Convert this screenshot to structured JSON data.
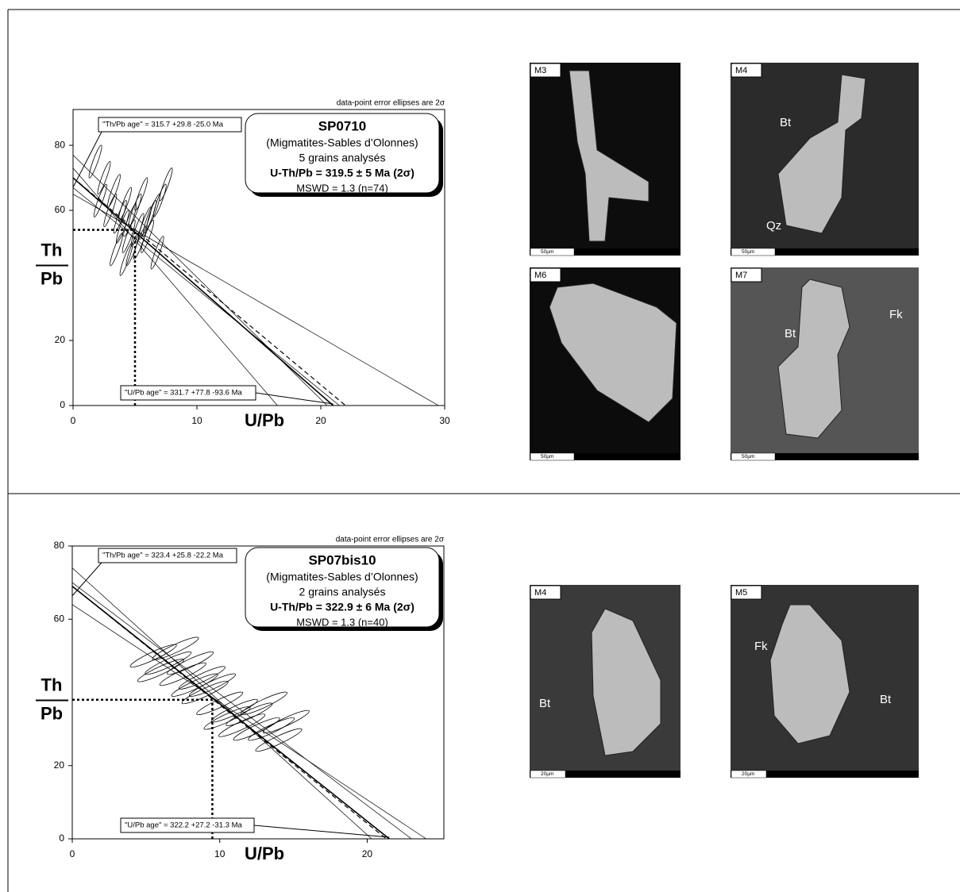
{
  "chart_data": [
    {
      "type": "ellipse",
      "title": "SP0710",
      "info": [
        "(Migmatites-Sables d’Olonnes)",
        "5 grains analysés",
        "U-Th/Pb = 319.5 ± 5 Ma (2σ)",
        "MSWD = 1.3 (n=74)"
      ],
      "note": "data-point error ellipses are 2σ",
      "th_pb_age": "\"Th/Pb age\" =  315.7 +29.8 -25.0 Ma",
      "u_pb_age": "\"U/Pb age\" = 331.7 +77.8 -93.6 Ma",
      "xlabel": "U/Pb",
      "ylabel": [
        "Th",
        "Pb"
      ],
      "xlim": [
        0,
        30
      ],
      "ylim": [
        0,
        91
      ],
      "xticks": [
        0,
        10,
        20,
        30
      ],
      "yticks": [
        0,
        20,
        60,
        80
      ],
      "x": [
        1.8,
        2.5,
        2.2,
        3,
        3.3,
        3.8,
        4,
        4.2,
        4.5,
        4.6,
        4.8,
        5,
        5.2,
        5.4,
        5.5,
        5.8,
        6,
        6.2,
        6.5,
        7,
        7.5,
        6.8,
        3.5,
        4.3
      ],
      "y": [
        75,
        70,
        63,
        60,
        66,
        58,
        55,
        62,
        52,
        57,
        48,
        60,
        54,
        50,
        65,
        56,
        52,
        58,
        60,
        63,
        68,
        47,
        48,
        45
      ],
      "lines": [
        {
          "intercept_y": 70,
          "intercept_x": 21,
          "style": "solid"
        },
        {
          "intercept_y": 70,
          "intercept_x": 22,
          "style": "dashed"
        },
        {
          "intercept_y": 73,
          "intercept_x": 16.5,
          "style": "thin"
        },
        {
          "intercept_y": 65,
          "intercept_x": 29.5,
          "style": "thin"
        },
        {
          "intercept_y": 77,
          "intercept_x": 20.5,
          "style": "thin"
        },
        {
          "intercept_y": 67,
          "intercept_x": 21.5,
          "style": "thin"
        }
      ],
      "mean": {
        "x": 5,
        "y": 54
      }
    },
    {
      "type": "ellipse",
      "title": "SP07bis10",
      "info": [
        "(Migmatites-Sables d’Olonnes)",
        "2 grains analysés",
        "U-Th/Pb = 322.9 ± 6 Ma (2σ)",
        "MSWD = 1.3 (n=40)"
      ],
      "note": "data-point error ellipses are 2σ",
      "th_pb_age": "\"Th/Pb age\" =  323.4 +25.8 -22.2 Ma",
      "u_pb_age": "\"U/Pb age\" = 322.2 +27.2 -31.3 Ma",
      "xlabel": "U/Pb",
      "ylabel": [
        "Th",
        "Pb"
      ],
      "xlim": [
        0,
        25.2
      ],
      "ylim": [
        0,
        80
      ],
      "xticks": [
        0,
        10,
        20
      ],
      "yticks": [
        0,
        20,
        60,
        80
      ],
      "x": [
        5.5,
        6,
        6.5,
        7,
        7.5,
        8,
        8.3,
        8.8,
        9,
        9.5,
        10,
        10.5,
        11,
        11.5,
        12,
        12.5,
        13,
        13.5,
        14,
        14.5
      ],
      "y": [
        50,
        46,
        48,
        52,
        45,
        48,
        42,
        44,
        40,
        42,
        37,
        33,
        35,
        31,
        34,
        30,
        37,
        30,
        27,
        32
      ],
      "lines": [
        {
          "intercept_y": 69,
          "intercept_x": 21.5,
          "style": "solid"
        },
        {
          "intercept_y": 69,
          "intercept_x": 21.3,
          "style": "dashed"
        },
        {
          "intercept_y": 74,
          "intercept_x": 20.3,
          "style": "thin"
        },
        {
          "intercept_y": 64,
          "intercept_x": 24,
          "style": "thin"
        },
        {
          "intercept_y": 70,
          "intercept_x": 23,
          "style": "thin"
        }
      ],
      "mean": {
        "x": 9.5,
        "y": 38
      }
    }
  ],
  "images": [
    {
      "label": "M3",
      "scale": "50µm",
      "minerals": []
    },
    {
      "label": "M4",
      "scale": "50µm",
      "minerals": [
        "Bt",
        "Qz"
      ]
    },
    {
      "label": "M6",
      "scale": "50µm",
      "minerals": []
    },
    {
      "label": "M7",
      "scale": "50µm",
      "minerals": [
        "Bt",
        "Fk"
      ]
    },
    {
      "label": "M4",
      "scale": "20µm",
      "minerals": [
        "Bt",
        "Bt"
      ]
    },
    {
      "label": "M5",
      "scale": "20µm",
      "minerals": [
        "Fk",
        "Bt"
      ]
    }
  ]
}
